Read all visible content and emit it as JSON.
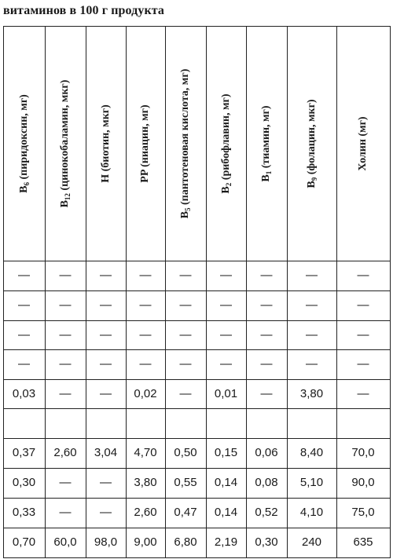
{
  "title": "витаминов в 100 г продукта",
  "headers": [
    {
      "main": "B",
      "sub": "6",
      "rest": " (пиридоксин, мг)"
    },
    {
      "main": "B",
      "sub": "12",
      "rest": " (цинокобаламин, мкг)"
    },
    {
      "main": "H (биотин, мкг)",
      "sub": "",
      "rest": ""
    },
    {
      "main": "PP (ниацин, мг)",
      "sub": "",
      "rest": ""
    },
    {
      "main": "B",
      "sub": "5",
      "rest": " (пантотеновая кислота, мг)"
    },
    {
      "main": "B",
      "sub": "2",
      "rest": " (рибофлавин, мг)"
    },
    {
      "main": "B",
      "sub": "1",
      "rest": " (тиамин, мг)"
    },
    {
      "main": "B",
      "sub": "9",
      "rest": " (фолацин, мкг)"
    },
    {
      "main": "Холин (мг)",
      "sub": "",
      "rest": ""
    }
  ],
  "rows": [
    [
      "—",
      "—",
      "—",
      "—",
      "—",
      "—",
      "—",
      "—",
      "—"
    ],
    [
      "—",
      "—",
      "—",
      "—",
      "—",
      "—",
      "—",
      "—",
      "—"
    ],
    [
      "—",
      "—",
      "—",
      "—",
      "—",
      "—",
      "—",
      "—",
      "—"
    ],
    [
      "—",
      "—",
      "—",
      "—",
      "—",
      "—",
      "—",
      "—",
      "—"
    ],
    [
      "0,03",
      "—",
      "—",
      "0,02",
      "—",
      "0,01",
      "—",
      "3,80",
      "—"
    ],
    [
      "0,37",
      "2,60",
      "3,04",
      "4,70",
      "0,50",
      "0,15",
      "0,06",
      "8,40",
      "70,0"
    ],
    [
      "0,30",
      "—",
      "—",
      "3,80",
      "0,55",
      "0,14",
      "0,08",
      "5,10",
      "90,0"
    ],
    [
      "0,33",
      "—",
      "—",
      "2,60",
      "0,47",
      "0,14",
      "0,52",
      "4,10",
      "75,0"
    ],
    [
      "0,70",
      "60,0",
      "98,0",
      "9,00",
      "6,80",
      "2,19",
      "0,30",
      "240",
      "635"
    ]
  ]
}
